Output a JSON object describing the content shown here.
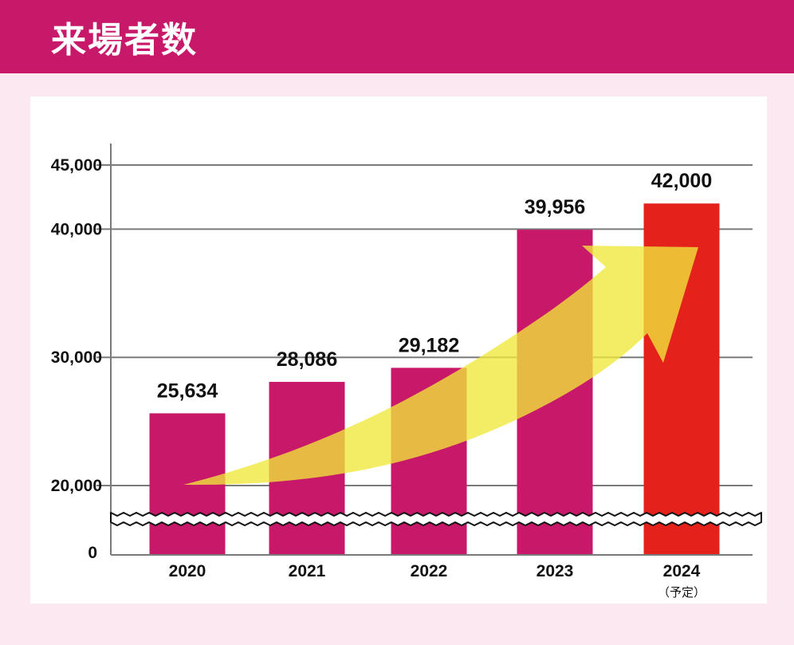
{
  "header": {
    "title": "来場者数"
  },
  "colors": {
    "header": "#c8186a",
    "bar": "#c8186a",
    "bar_highlight": "#e4211b",
    "arrow": "#f0e83a",
    "background": "#fbe8f1"
  },
  "chart_data": {
    "type": "bar",
    "categories": [
      "2020",
      "2021",
      "2022",
      "2023",
      "2024"
    ],
    "category_notes": [
      "",
      "",
      "",
      "",
      "（予定）"
    ],
    "values": [
      25634,
      28086,
      29182,
      39956,
      42000
    ],
    "value_labels": [
      "25,634",
      "28,086",
      "29,182",
      "39,956",
      "42,000"
    ],
    "highlight_index": 4,
    "yticks": [
      {
        "value": 0,
        "label": "0"
      },
      {
        "value": 20000,
        "label": "20,000"
      },
      {
        "value": 30000,
        "label": "30,000"
      },
      {
        "value": 40000,
        "label": "40,000"
      },
      {
        "value": 45000,
        "label": "45,000"
      }
    ],
    "axis_break": true,
    "ylim": [
      0,
      45000
    ],
    "grid": true,
    "trend_arrow": true
  }
}
